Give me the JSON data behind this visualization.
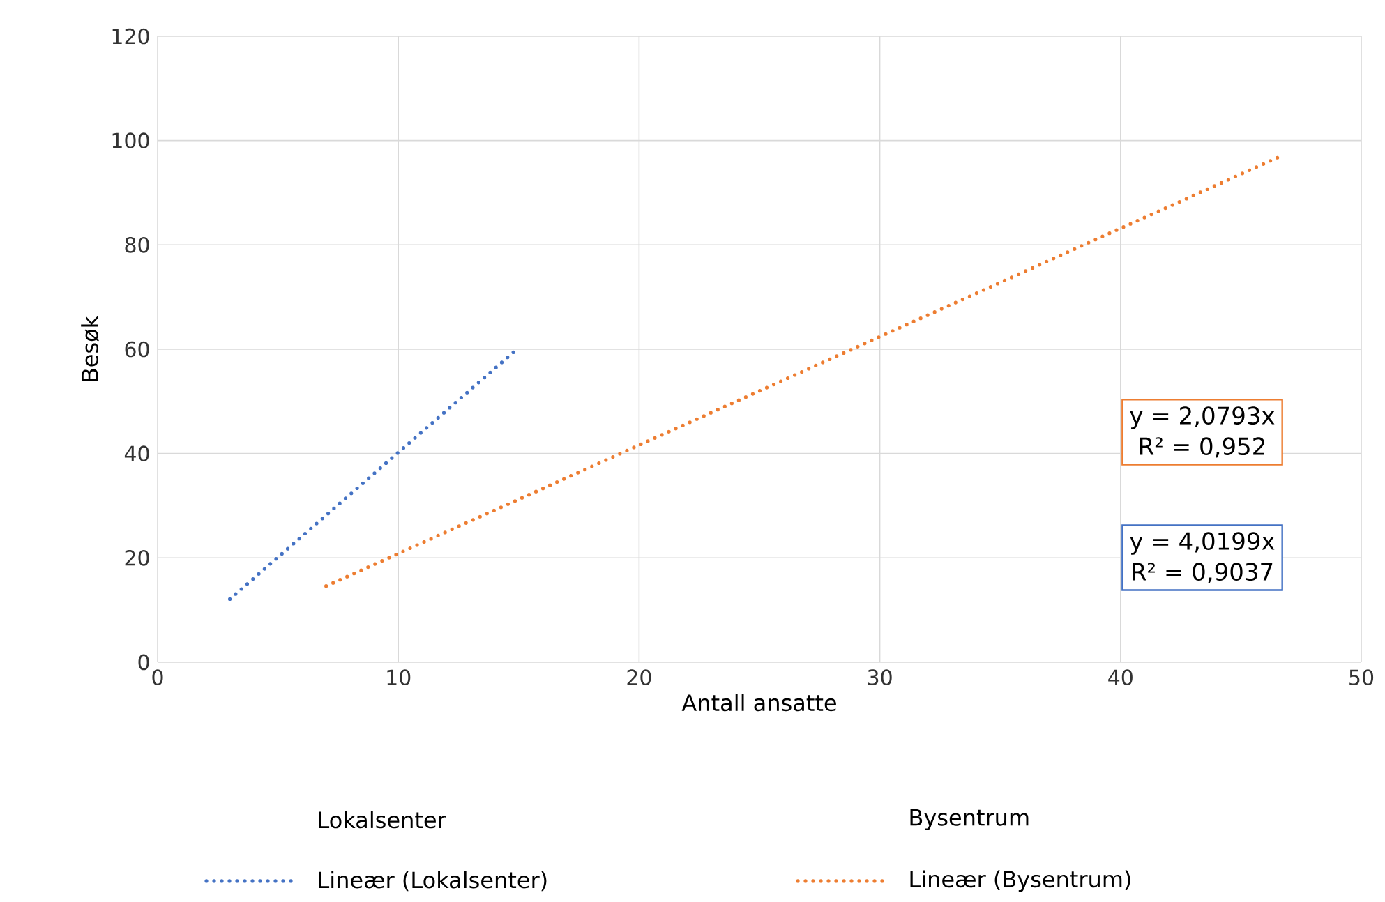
{
  "chart_data": {
    "type": "line",
    "xlabel": "Antall ansatte",
    "ylabel": "Besøk",
    "xlim": [
      0,
      50
    ],
    "ylim": [
      0,
      120
    ],
    "xticks": [
      0,
      10,
      20,
      30,
      40,
      50
    ],
    "yticks": [
      0,
      20,
      40,
      60,
      80,
      100,
      120
    ],
    "grid": true,
    "legend": "bottom",
    "line_style": "dotted",
    "marker": "none",
    "series": [
      {
        "name": "Lineær (Lokalsenter)",
        "color": "#4472c4",
        "x": [
          3,
          15
        ],
        "values": [
          12.1,
          60.3
        ]
      },
      {
        "name": "Lineær (Bysentrum)",
        "color": "#ed7d31",
        "x": [
          7,
          46.7
        ],
        "values": [
          14.6,
          97.1
        ]
      }
    ],
    "annotations": [
      "y = 2,0793x",
      "R² = 0,952",
      "y = 4,0199x",
      "R² = 0,9037",
      "Lokalsenter",
      "Bysentrum"
    ]
  }
}
